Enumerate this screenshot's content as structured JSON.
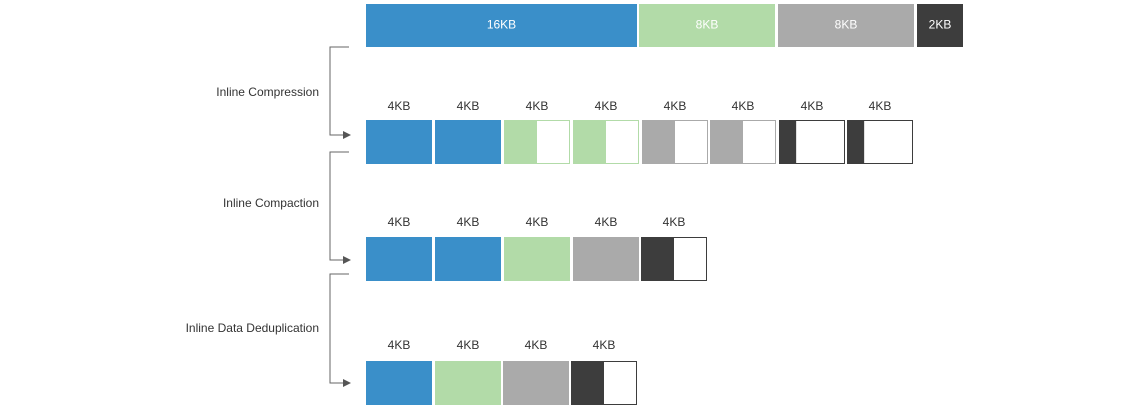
{
  "top_row": {
    "blocks": [
      "16KB",
      "8KB",
      "8KB",
      "2KB"
    ]
  },
  "stages": [
    {
      "label": "Inline Compression",
      "blocks": [
        "4KB",
        "4KB",
        "4KB",
        "4KB",
        "4KB",
        "4KB",
        "4KB",
        "4KB"
      ]
    },
    {
      "label": "Inline Compaction",
      "blocks": [
        "4KB",
        "4KB",
        "4KB",
        "4KB",
        "4KB"
      ]
    },
    {
      "label": "Inline Data Deduplication",
      "blocks": [
        "4KB",
        "4KB",
        "4KB",
        "4KB"
      ]
    }
  ]
}
